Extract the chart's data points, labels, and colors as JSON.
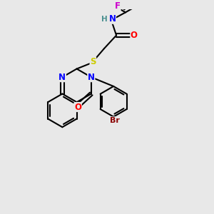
{
  "bg_color": "#e8e8e8",
  "bond_color": "#000000",
  "bond_width": 1.5,
  "atom_colors": {
    "N": "#0000ff",
    "O": "#ff0000",
    "S": "#cccc00",
    "F": "#cc00cc",
    "Br": "#8B0000",
    "H": "#4a9090",
    "C": "#000000"
  },
  "font_size": 8.5,
  "fig_size": [
    3.0,
    3.0
  ],
  "dpi": 100
}
